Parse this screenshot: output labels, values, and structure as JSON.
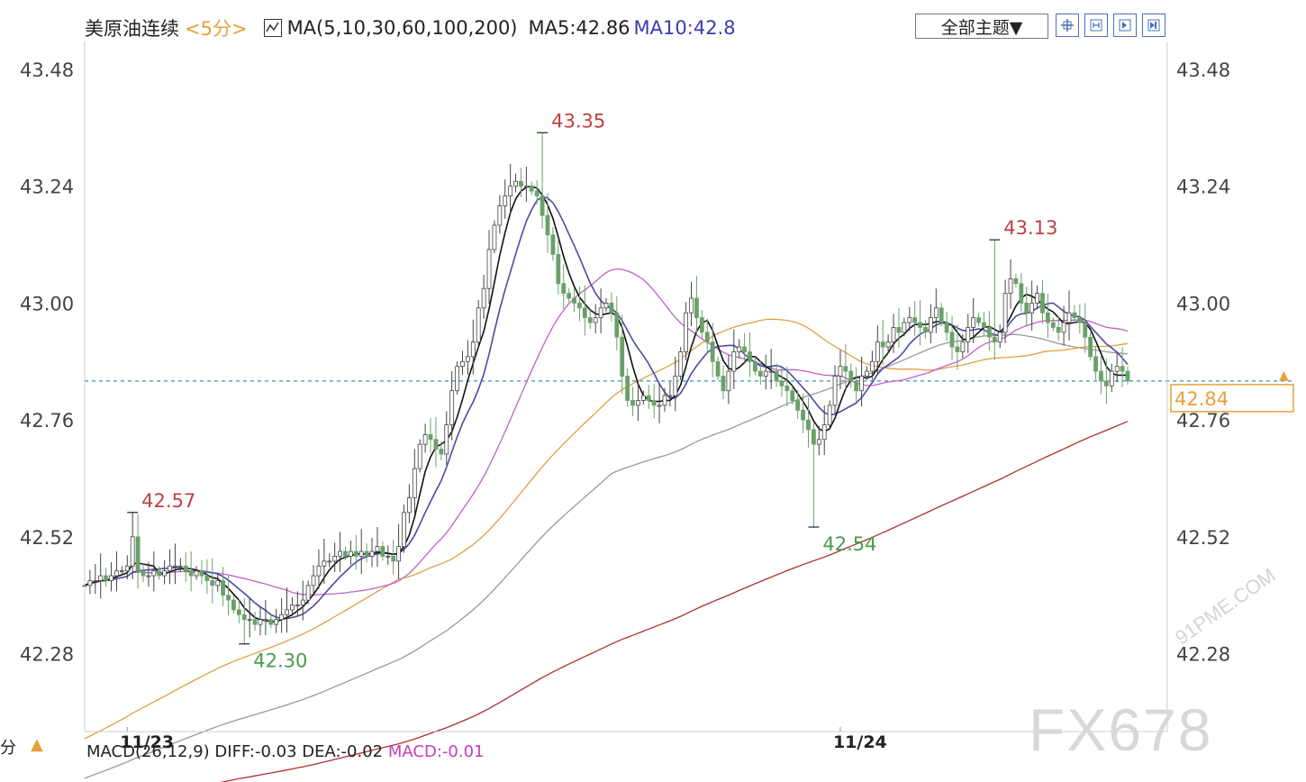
{
  "toolbar": {
    "symbol": "美原油连续",
    "period": "<5分>",
    "ma_label": "MA(5,10,30,60,100,200)",
    "ma5": "MA5:42.86",
    "ma10": "MA10:42.8",
    "theme_select": "全部主题▼",
    "tool_buttons": [
      "crosshair-icon",
      "zoom-icon",
      "step-icon",
      "forward-icon"
    ]
  },
  "bottom": {
    "unit": "分",
    "macd_prefix": "MACD(26,12,9) DIFF:-0.03 DEA:-0.02",
    "macd_value": "MACD:-0.01"
  },
  "watermarks": {
    "fx": "FX678",
    "site": "91PME.COM"
  },
  "colors": {
    "up_candle": "#444444",
    "down_candle": "#6aa06a",
    "ma5": "#111111",
    "ma10": "#4a4aa8",
    "ma30": "#c060c8",
    "ma60": "#e0a040",
    "ma100": "#999999",
    "ma200": "#b03030",
    "high_label": "#c04040",
    "low_label": "#4a9a4a",
    "current_price_line": "#5aa0c8",
    "current_price_box": "#e8a13a"
  },
  "chart_data": {
    "type": "candlestick",
    "title": "美原油连续",
    "interval": "5分",
    "ylim": [
      42.12,
      43.53
    ],
    "yticks": [
      43.48,
      43.24,
      43.0,
      42.76,
      42.52,
      42.28
    ],
    "ytick_labels": [
      "43.48",
      "43.24",
      "43.00",
      "42.76",
      "42.52",
      "42.28"
    ],
    "xtick_labels": [
      {
        "label": "11/23",
        "index": 8
      },
      {
        "label": "11/24",
        "index": 142
      }
    ],
    "current_price": 42.84,
    "annotations": [
      {
        "label": "42.57",
        "kind": "high",
        "index": 9,
        "value": 42.57
      },
      {
        "label": "42.30",
        "kind": "low",
        "index": 30,
        "value": 42.3
      },
      {
        "label": "43.35",
        "kind": "high",
        "index": 86,
        "value": 43.35
      },
      {
        "label": "42.54",
        "kind": "low",
        "index": 137,
        "value": 42.54
      },
      {
        "label": "43.13",
        "kind": "high",
        "index": 171,
        "value": 43.13
      }
    ],
    "close": [
      42.42,
      42.43,
      42.43,
      42.44,
      42.43,
      42.44,
      42.45,
      42.45,
      42.46,
      42.52,
      42.45,
      42.44,
      42.44,
      42.45,
      42.44,
      42.45,
      42.46,
      42.46,
      42.46,
      42.45,
      42.44,
      42.45,
      42.44,
      42.43,
      42.42,
      42.43,
      42.4,
      42.39,
      42.37,
      42.36,
      42.35,
      42.35,
      42.34,
      42.35,
      42.35,
      42.34,
      42.35,
      42.36,
      42.37,
      42.38,
      42.38,
      42.39,
      42.42,
      42.44,
      42.46,
      42.47,
      42.47,
      42.48,
      42.49,
      42.48,
      42.49,
      42.48,
      42.49,
      42.48,
      42.49,
      42.5,
      42.48,
      42.48,
      42.47,
      42.5,
      42.57,
      42.6,
      42.66,
      42.71,
      42.73,
      42.72,
      42.7,
      42.69,
      42.75,
      42.82,
      42.87,
      42.88,
      42.89,
      42.92,
      42.99,
      43.03,
      43.11,
      43.16,
      43.2,
      43.22,
      43.24,
      43.25,
      43.24,
      43.24,
      43.23,
      43.22,
      43.18,
      43.14,
      43.1,
      43.04,
      43.02,
      43.01,
      43.0,
      42.99,
      42.97,
      42.96,
      42.97,
      42.99,
      43.0,
      42.98,
      42.93,
      42.85,
      42.8,
      42.79,
      42.8,
      42.81,
      42.8,
      42.79,
      42.79,
      42.81,
      42.81,
      42.85,
      42.9,
      42.98,
      43.01,
      42.97,
      42.94,
      42.92,
      42.88,
      42.85,
      42.82,
      42.86,
      42.9,
      42.91,
      42.9,
      42.88,
      42.86,
      42.85,
      42.86,
      42.86,
      42.84,
      42.83,
      42.82,
      42.8,
      42.78,
      42.76,
      42.74,
      42.71,
      42.72,
      42.75,
      42.79,
      42.85,
      42.87,
      42.86,
      42.84,
      42.82,
      42.85,
      42.86,
      42.88,
      42.92,
      42.91,
      42.92,
      42.95,
      42.94,
      42.96,
      42.97,
      42.96,
      42.95,
      42.94,
      42.97,
      42.99,
      42.96,
      42.94,
      42.91,
      42.9,
      42.92,
      42.95,
      42.97,
      42.96,
      42.95,
      42.93,
      42.92,
      42.94,
      43.02,
      43.05,
      43.04,
      43.0,
      42.98,
      43.0,
      43.02,
      42.98,
      42.96,
      42.95,
      42.94,
      42.96,
      42.98,
      42.97,
      42.96,
      42.93,
      42.89,
      42.86,
      42.84,
      42.83,
      42.86,
      42.87,
      42.86,
      42.84
    ]
  }
}
